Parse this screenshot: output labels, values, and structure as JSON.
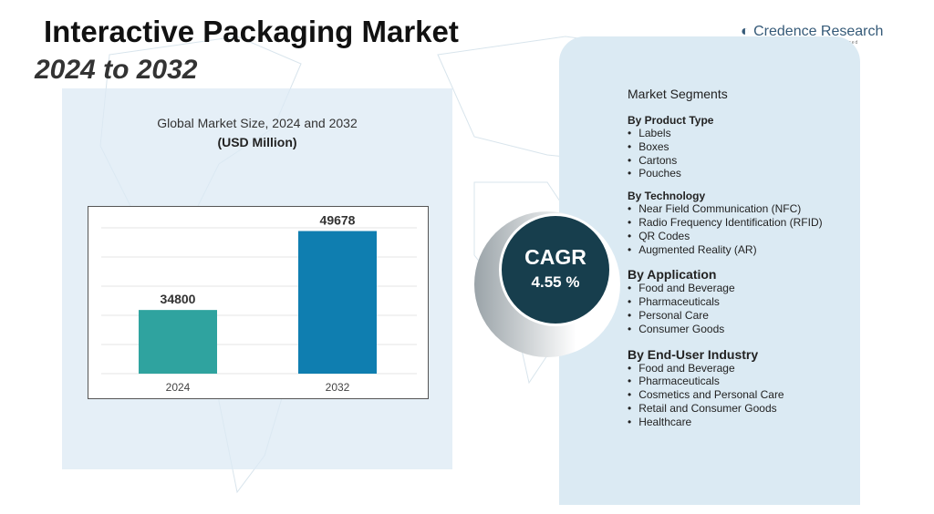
{
  "header": {
    "title": "Interactive Packaging Market",
    "subtitle": "2024 to 2032",
    "logo": "Credence Research",
    "logo_tagline": "delivered"
  },
  "chart_data": {
    "type": "bar",
    "title": "Global Market Size, 2024 and 2032",
    "ylabel": "(USD Million)",
    "categories": [
      "2024",
      "2032"
    ],
    "values": [
      34800,
      49678
    ],
    "colors": [
      "#2fa39f",
      "#0f7eb0"
    ],
    "ylim": [
      22800,
      52000
    ],
    "grid": true,
    "legend": "none"
  },
  "cagr": {
    "label": "CAGR",
    "value": "4.55 %"
  },
  "segments": {
    "heading": "Market Segments",
    "groups": [
      {
        "title": "By Product Type",
        "items": [
          "Labels",
          "Boxes",
          "Cartons",
          "Pouches"
        ]
      },
      {
        "title": "By Technology",
        "items": [
          "Near Field Communication (NFC)",
          "Radio Frequency Identification (RFID)",
          "QR Codes",
          "Augmented Reality (AR)"
        ]
      },
      {
        "title": "By Application",
        "items": [
          "Food and Beverage",
          "Pharmaceuticals",
          "Personal Care",
          "Consumer Goods"
        ]
      },
      {
        "title": "By End-User Industry",
        "items": [
          "Food and Beverage",
          "Pharmaceuticals",
          "Cosmetics and Personal Care",
          "Retail and Consumer Goods",
          "Healthcare"
        ]
      }
    ]
  }
}
